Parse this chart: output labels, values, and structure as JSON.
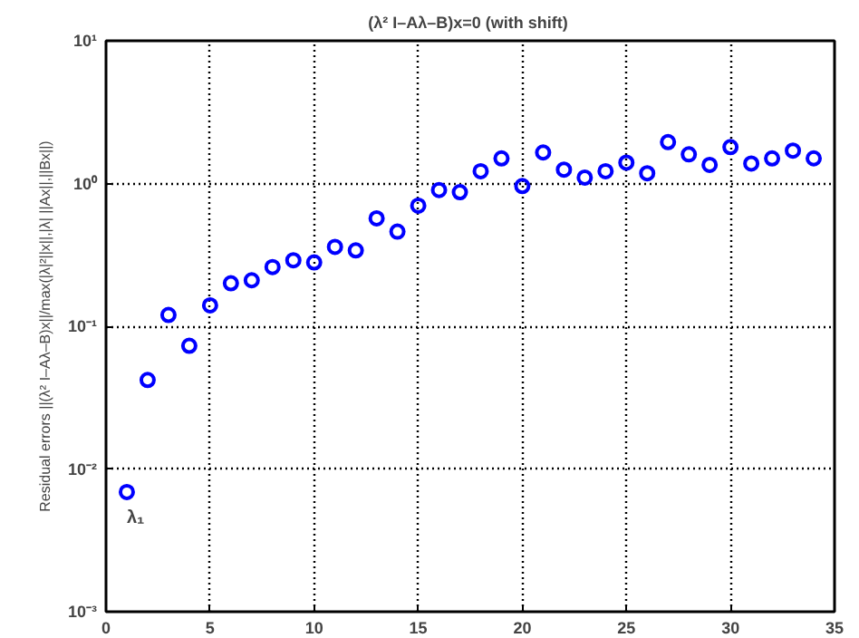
{
  "chart_data": {
    "type": "scatter",
    "title": "(λ² I–Aλ–B)x=0  (with shift)",
    "ylabel": "Residual errors ||(λ² I–Aλ–B)x||/max(|λ|²||x||,|λ| ||Ax||,||Bx||)",
    "x": [
      1,
      2,
      3,
      4,
      5,
      6,
      7,
      8,
      9,
      10,
      11,
      12,
      13,
      14,
      15,
      16,
      17,
      18,
      19,
      20,
      21,
      22,
      23,
      24,
      25,
      26,
      27,
      28,
      29,
      30,
      31,
      32,
      33,
      34
    ],
    "series": [
      {
        "color": "#0000ff",
        "values": [
          0.0069,
          0.042,
          0.12,
          0.073,
          0.14,
          0.2,
          0.21,
          0.26,
          0.29,
          0.28,
          0.36,
          0.34,
          0.57,
          0.46,
          0.7,
          0.9,
          0.87,
          1.22,
          1.5,
          0.96,
          1.65,
          1.25,
          1.1,
          1.22,
          1.4,
          1.18,
          1.95,
          1.6,
          1.35,
          1.8,
          1.38,
          1.5,
          1.7,
          1.5
        ]
      }
    ],
    "annotations": [
      {
        "text": "λ₁",
        "x": 1,
        "y": 0.0069
      }
    ],
    "log": "y",
    "xlim": [
      0,
      35
    ],
    "xticks": [
      0,
      5,
      10,
      15,
      20,
      25,
      30,
      35
    ],
    "ylim": [
      0.001,
      10
    ],
    "yticks": [
      {
        "value": 0.001,
        "label": "10⁻³"
      },
      {
        "value": 0.01,
        "label": "10⁻²"
      },
      {
        "value": 0.1,
        "label": "10⁻¹"
      },
      {
        "value": 1,
        "label": "10⁰"
      },
      {
        "value": 10,
        "label": "10¹"
      }
    ],
    "grid": true,
    "marker": "circle"
  }
}
